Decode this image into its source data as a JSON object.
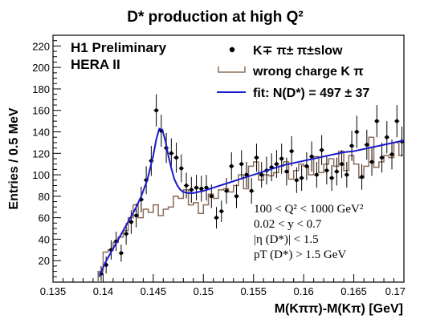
{
  "chart_data": {
    "type": "scatter",
    "title": "D* production at high Q²",
    "xlabel": "M(Kππ)-M(Kπ) [GeV]",
    "ylabel": "Entries / 0.5 MeV",
    "xlim": [
      0.135,
      0.17
    ],
    "ylim": [
      0,
      230
    ],
    "x_ticks": [
      "0.135",
      "0.14",
      "0.145",
      "0.15",
      "0.155",
      "0.16",
      "0.165",
      "0.17"
    ],
    "y_ticks": [
      "20",
      "40",
      "60",
      "80",
      "100",
      "120",
      "140",
      "160",
      "180",
      "200",
      "220"
    ],
    "grid": false,
    "legend_position": "top-right",
    "label_h1": "H1 Preliminary",
    "label_hera": "HERA II",
    "legend": {
      "data": "K∓ π± π±slow",
      "wrong_charge": "wrong charge K π",
      "fit": "fit: N(D*) = 497 ± 37"
    },
    "cuts": [
      "100 < Q² < 1000 GeV²",
      "0.02 < y < 0.7",
      "|η (D*)| < 1.5",
      "pT (D*) > 1.5 GeV"
    ],
    "colors": {
      "data": "#000000",
      "wrong_charge": "#8b6b58",
      "fit": "#1a1acc"
    },
    "series": [
      {
        "name": "K∓ π± π±slow",
        "marker": "point-with-error-bars",
        "x": [
          0.1398,
          0.1403,
          0.1408,
          0.1413,
          0.1418,
          0.1423,
          0.1428,
          0.1433,
          0.1438,
          0.1443,
          0.1448,
          0.1453,
          0.1458,
          0.1463,
          0.1468,
          0.1473,
          0.1478,
          0.1483,
          0.1488,
          0.1493,
          0.1498,
          0.1503,
          0.1508,
          0.1513,
          0.1518,
          0.1523,
          0.1528,
          0.1533,
          0.1538,
          0.1543,
          0.1548,
          0.1553,
          0.1558,
          0.1563,
          0.1568,
          0.1573,
          0.1578,
          0.1583,
          0.1588,
          0.1593,
          0.1598,
          0.1603,
          0.1608,
          0.1613,
          0.1618,
          0.1623,
          0.1628,
          0.1633,
          0.1638,
          0.1643,
          0.1648,
          0.1653,
          0.1658,
          0.1663,
          0.1668,
          0.1673,
          0.1678,
          0.1683,
          0.1688,
          0.1693,
          0.1698
        ],
        "y": [
          8,
          16,
          30,
          38,
          27,
          45,
          56,
          62,
          77,
          95,
          113,
          160,
          141,
          125,
          120,
          116,
          106,
          90,
          86,
          88,
          87,
          88,
          80,
          60,
          66,
          85,
          108,
          80,
          110,
          100,
          85,
          116,
          100,
          104,
          107,
          110,
          115,
          103,
          122,
          95,
          97,
          108,
          117,
          100,
          123,
          104,
          97,
          103,
          110,
          100,
          127,
          140,
          98,
          128,
          112,
          150,
          116,
          135,
          119,
          150,
          131
        ],
        "y_err": [
          7,
          8,
          9,
          9,
          8,
          10,
          11,
          11,
          12,
          13,
          14,
          15,
          15,
          14,
          14,
          14,
          13,
          12,
          12,
          12,
          12,
          12,
          11,
          10,
          10,
          12,
          13,
          11,
          13,
          12,
          12,
          13,
          12,
          13,
          13,
          13,
          14,
          13,
          14,
          12,
          12,
          13,
          14,
          12,
          14,
          13,
          12,
          13,
          13,
          12,
          14,
          15,
          12,
          14,
          13,
          15,
          14,
          15,
          14,
          15,
          14
        ]
      },
      {
        "name": "wrong charge K π",
        "style": "histogram",
        "bin_edges": [
          0.1395,
          0.14,
          0.1405,
          0.141,
          0.1415,
          0.142,
          0.1425,
          0.143,
          0.1435,
          0.144,
          0.1445,
          0.145,
          0.1455,
          0.146,
          0.1465,
          0.147,
          0.1475,
          0.148,
          0.1485,
          0.149,
          0.1495,
          0.15,
          0.1505,
          0.151,
          0.1515,
          0.152,
          0.1525,
          0.153,
          0.1535,
          0.154,
          0.1545,
          0.155,
          0.1555,
          0.156,
          0.1565,
          0.157,
          0.1575,
          0.158,
          0.1585,
          0.159,
          0.1595,
          0.16,
          0.1605,
          0.161,
          0.1615,
          0.162,
          0.1625,
          0.163,
          0.1635,
          0.164,
          0.1645,
          0.165,
          0.1655,
          0.166,
          0.1665,
          0.167,
          0.1675,
          0.168,
          0.1685,
          0.169,
          0.1695,
          0.17
        ],
        "values": [
          10,
          28,
          30,
          37,
          42,
          48,
          60,
          72,
          60,
          68,
          65,
          72,
          62,
          68,
          70,
          80,
          78,
          86,
          72,
          74,
          64,
          72,
          82,
          78,
          86,
          87,
          84,
          90,
          100,
          87,
          108,
          112,
          95,
          100,
          99,
          102,
          108,
          112,
          96,
          104,
          110,
          108,
          100,
          117,
          102,
          110,
          115,
          108,
          122,
          104,
          118,
          110,
          97,
          108,
          135,
          107,
          112,
          118,
          116,
          130,
          118
        ]
      },
      {
        "name": "fit: N(D*) = 497 ± 37",
        "style": "curve",
        "x": [
          0.1396,
          0.1402,
          0.1408,
          0.1414,
          0.142,
          0.1426,
          0.1432,
          0.1438,
          0.1444,
          0.145,
          0.1453,
          0.1456,
          0.1459,
          0.1462,
          0.1465,
          0.1468,
          0.1471,
          0.1474,
          0.1477,
          0.148,
          0.1485,
          0.149,
          0.1495,
          0.15,
          0.151,
          0.152,
          0.153,
          0.154,
          0.155,
          0.156,
          0.157,
          0.158,
          0.159,
          0.16,
          0.161,
          0.162,
          0.163,
          0.164,
          0.165,
          0.166,
          0.167,
          0.168,
          0.169,
          0.17
        ],
        "y": [
          5,
          18,
          28,
          38,
          48,
          58,
          68,
          80,
          95,
          118,
          133,
          143,
          142,
          132,
          118,
          106,
          96,
          90,
          86,
          84,
          83,
          83,
          84,
          85,
          88,
          91,
          94,
          97,
          100,
          103,
          106,
          109,
          111,
          113,
          115,
          117,
          119,
          121,
          122,
          124,
          126,
          128,
          130,
          132
        ]
      }
    ]
  }
}
